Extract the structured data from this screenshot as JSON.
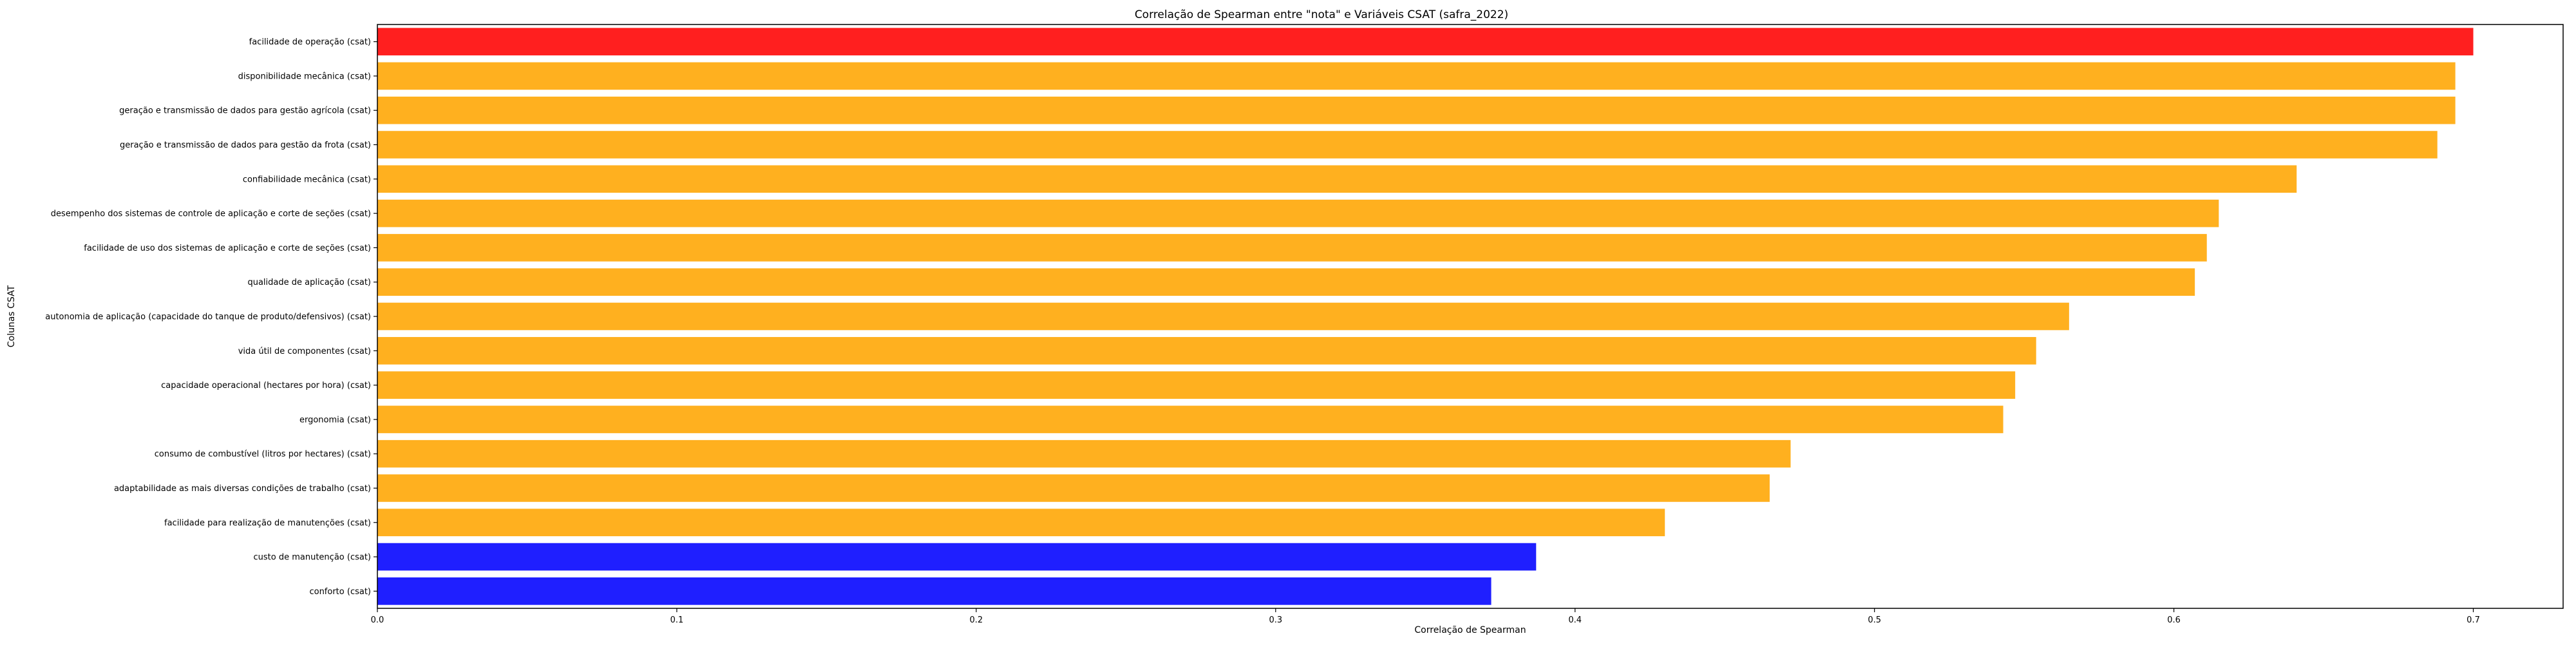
{
  "chart_data": {
    "type": "bar",
    "orientation": "horizontal",
    "title": "Correlação de Spearman entre \"nota\" e Variáveis CSAT (safra_2022)",
    "xlabel": "Correlação de Spearman",
    "ylabel": "Colunas CSAT",
    "xlim": [
      0,
      0.73
    ],
    "xticks": [
      "0.0",
      "0.1",
      "0.2",
      "0.3",
      "0.4",
      "0.5",
      "0.6",
      "0.7"
    ],
    "grid": false,
    "categories": [
      "facilidade de operação (csat)",
      "disponibilidade mecânica (csat)",
      "geração e transmissão de dados para gestão agrícola (csat)",
      "geração e transmissão de dados para gestão da frota (csat)",
      "confiabilidade mecânica (csat)",
      "desempenho dos sistemas de controle de aplicação e corte de seções (csat)",
      "facilidade de uso dos sistemas de aplicação e corte de seções (csat)",
      "qualidade de aplicação (csat)",
      "autonomia de aplicação (capacidade do tanque de produto/defensivos) (csat)",
      "vida útil de componentes (csat)",
      "capacidade operacional (hectares por hora) (csat)",
      "ergonomia (csat)",
      "consumo de combustível (litros por hectares) (csat)",
      "adaptabilidade as mais diversas condições de trabalho (csat)",
      "facilidade para realização de manutenções (csat)",
      "custo de manutenção (csat)",
      "conforto (csat)"
    ],
    "values": [
      0.7,
      0.694,
      0.694,
      0.688,
      0.641,
      0.615,
      0.611,
      0.607,
      0.565,
      0.554,
      0.547,
      0.543,
      0.472,
      0.465,
      0.43,
      0.387,
      0.372
    ],
    "bar_colors": [
      "#ff0000",
      "#ffa500",
      "#ffa500",
      "#ffa500",
      "#ffa500",
      "#ffa500",
      "#ffa500",
      "#ffa500",
      "#ffa500",
      "#ffa500",
      "#ffa500",
      "#ffa500",
      "#ffa500",
      "#ffa500",
      "#ffa500",
      "#0000ff",
      "#0000ff"
    ],
    "bar_alpha": 0.88
  }
}
